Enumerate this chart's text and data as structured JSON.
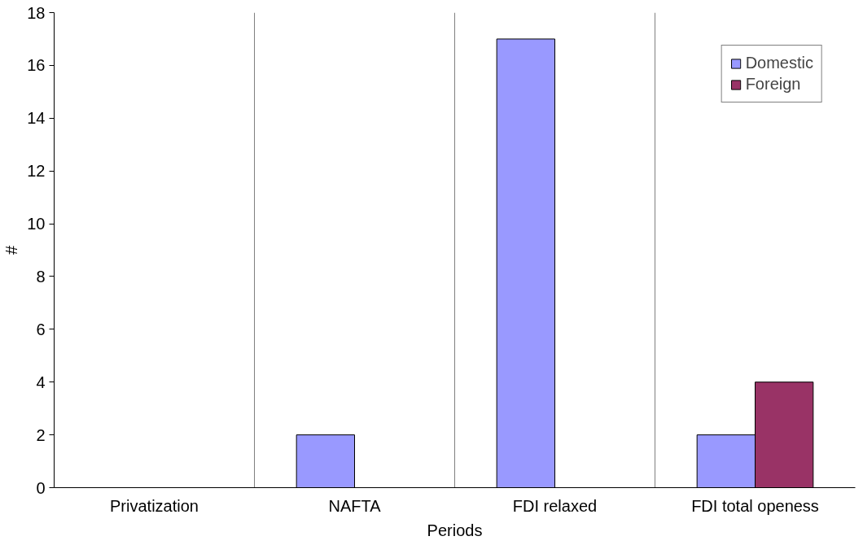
{
  "chart_data": {
    "type": "bar",
    "xlabel": "Periods",
    "ylabel": "#",
    "categories": [
      "Privatization",
      "NAFTA",
      "FDI relaxed",
      "FDI total openess"
    ],
    "series": [
      {
        "name": "Domestic",
        "color": "#9999ff",
        "values": [
          null,
          2,
          17,
          2
        ]
      },
      {
        "name": "Foreign",
        "color": "#993366",
        "values": [
          null,
          null,
          null,
          4
        ]
      }
    ],
    "ylim": [
      0,
      18
    ],
    "yticks": [
      0,
      2,
      4,
      6,
      8,
      10,
      12,
      14,
      16,
      18
    ],
    "grid": "x",
    "legend": "top right"
  }
}
